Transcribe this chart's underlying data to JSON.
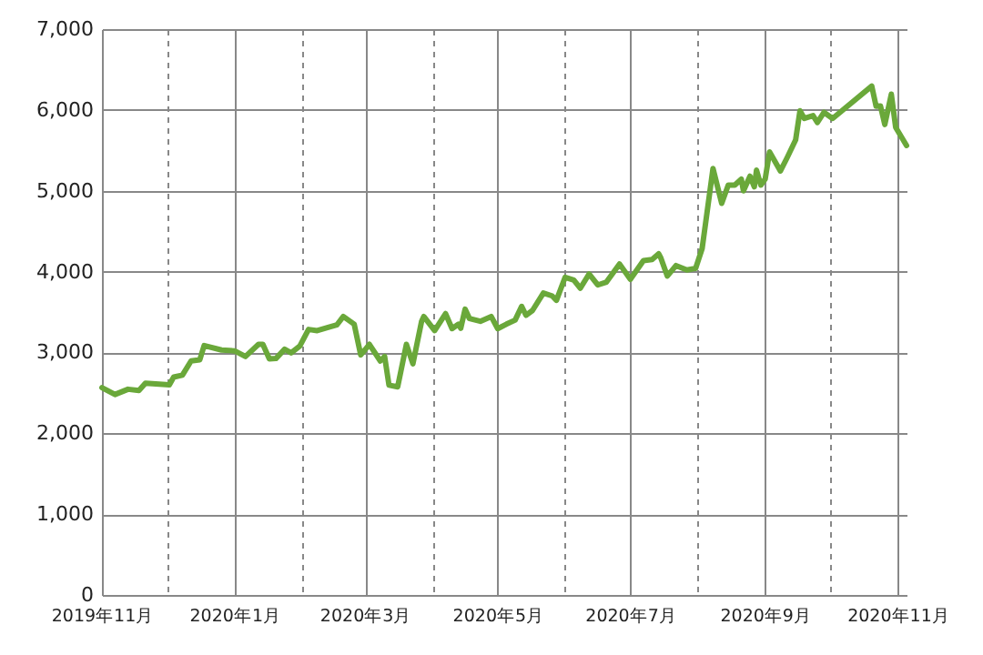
{
  "chart_data": {
    "type": "line",
    "x": [
      "2019-11-01",
      "2019-11-07",
      "2019-11-13",
      "2019-11-18",
      "2019-11-21",
      "2019-12-02",
      "2019-12-04",
      "2019-12-08",
      "2019-12-12",
      "2019-12-16",
      "2019-12-18",
      "2019-12-26",
      "2020-01-01",
      "2020-01-06",
      "2020-01-12",
      "2020-01-14",
      "2020-01-17",
      "2020-01-20",
      "2020-01-24",
      "2020-01-27",
      "2020-01-31",
      "2020-02-04",
      "2020-02-08",
      "2020-02-13",
      "2020-02-17",
      "2020-02-20",
      "2020-02-25",
      "2020-02-28",
      "2020-03-03",
      "2020-03-08",
      "2020-03-10",
      "2020-03-12",
      "2020-03-16",
      "2020-03-20",
      "2020-03-23",
      "2020-03-27",
      "2020-03-28",
      "2020-04-02",
      "2020-04-07",
      "2020-04-10",
      "2020-04-13",
      "2020-04-14",
      "2020-04-16",
      "2020-04-18",
      "2020-04-23",
      "2020-04-28",
      "2020-05-01",
      "2020-05-05",
      "2020-05-09",
      "2020-05-12",
      "2020-05-14",
      "2020-05-17",
      "2020-05-22",
      "2020-05-26",
      "2020-05-28",
      "2020-06-01",
      "2020-06-05",
      "2020-06-08",
      "2020-06-12",
      "2020-06-16",
      "2020-06-20",
      "2020-06-26",
      "2020-07-01",
      "2020-07-07",
      "2020-07-11",
      "2020-07-14",
      "2020-07-15",
      "2020-07-18",
      "2020-07-22",
      "2020-07-27",
      "2020-07-31",
      "2020-08-03",
      "2020-08-08",
      "2020-08-12",
      "2020-08-15",
      "2020-08-18",
      "2020-08-21",
      "2020-08-22",
      "2020-08-25",
      "2020-08-27",
      "2020-08-28",
      "2020-08-30",
      "2020-09-01",
      "2020-09-03",
      "2020-09-08",
      "2020-09-11",
      "2020-09-15",
      "2020-09-17",
      "2020-09-19",
      "2020-09-23",
      "2020-09-25",
      "2020-09-28",
      "2020-10-02",
      "2020-10-20",
      "2020-10-22",
      "2020-10-24",
      "2020-10-26",
      "2020-10-29",
      "2020-10-31",
      "2020-11-05"
    ],
    "series": [
      {
        "color": "#6aa83a",
        "values": [
          2565,
          2480,
          2545,
          2530,
          2620,
          2600,
          2695,
          2720,
          2895,
          2910,
          3085,
          3030,
          3020,
          2950,
          3100,
          3100,
          2920,
          2925,
          3040,
          2995,
          3080,
          3285,
          3270,
          3310,
          3340,
          3445,
          3350,
          2970,
          3100,
          2895,
          2950,
          2595,
          2575,
          3100,
          2860,
          3385,
          3445,
          3270,
          3480,
          3295,
          3350,
          3300,
          3535,
          3420,
          3385,
          3445,
          3295,
          3350,
          3400,
          3570,
          3460,
          3520,
          3735,
          3700,
          3645,
          3930,
          3895,
          3795,
          3970,
          3835,
          3870,
          4095,
          3905,
          4135,
          4150,
          4220,
          4170,
          3945,
          4075,
          4020,
          4040,
          4285,
          5275,
          4845,
          5070,
          5070,
          5145,
          5000,
          5180,
          5050,
          5255,
          5070,
          5145,
          5480,
          5245,
          5405,
          5630,
          5990,
          5895,
          5930,
          5845,
          5970,
          5895,
          6295,
          6045,
          6050,
          5820,
          6195,
          5785,
          5560
        ]
      }
    ],
    "xlim": [
      "2019-11-01",
      "2020-11-05"
    ],
    "xticks": [
      {
        "value": "2019-11-01",
        "label": "2019年11月"
      },
      {
        "value": "2019-12-01",
        "label": null
      },
      {
        "value": "2020-01-01",
        "label": "2020年1月"
      },
      {
        "value": "2020-02-01",
        "label": null
      },
      {
        "value": "2020-03-01",
        "label": "2020年3月"
      },
      {
        "value": "2020-04-01",
        "label": null
      },
      {
        "value": "2020-05-01",
        "label": "2020年5月"
      },
      {
        "value": "2020-06-01",
        "label": null
      },
      {
        "value": "2020-07-01",
        "label": "2020年7月"
      },
      {
        "value": "2020-08-01",
        "label": null
      },
      {
        "value": "2020-09-01",
        "label": "2020年9月"
      },
      {
        "value": "2020-10-01",
        "label": null
      },
      {
        "value": "2020-11-01",
        "label": "2020年11月"
      }
    ],
    "ylim": [
      0,
      7000
    ],
    "yticks": [
      0,
      {
        "value": 1000,
        "label": "1,000"
      },
      {
        "value": 2000,
        "label": "2,000"
      },
      {
        "value": 3000,
        "label": "3,000"
      },
      {
        "value": 4000,
        "label": "4,000"
      },
      {
        "value": 5000,
        "label": "5,000"
      },
      {
        "value": 6000,
        "label": "6,000"
      },
      {
        "value": 7000,
        "label": "7,000"
      }
    ],
    "grid": true,
    "line_style": "solid"
  }
}
